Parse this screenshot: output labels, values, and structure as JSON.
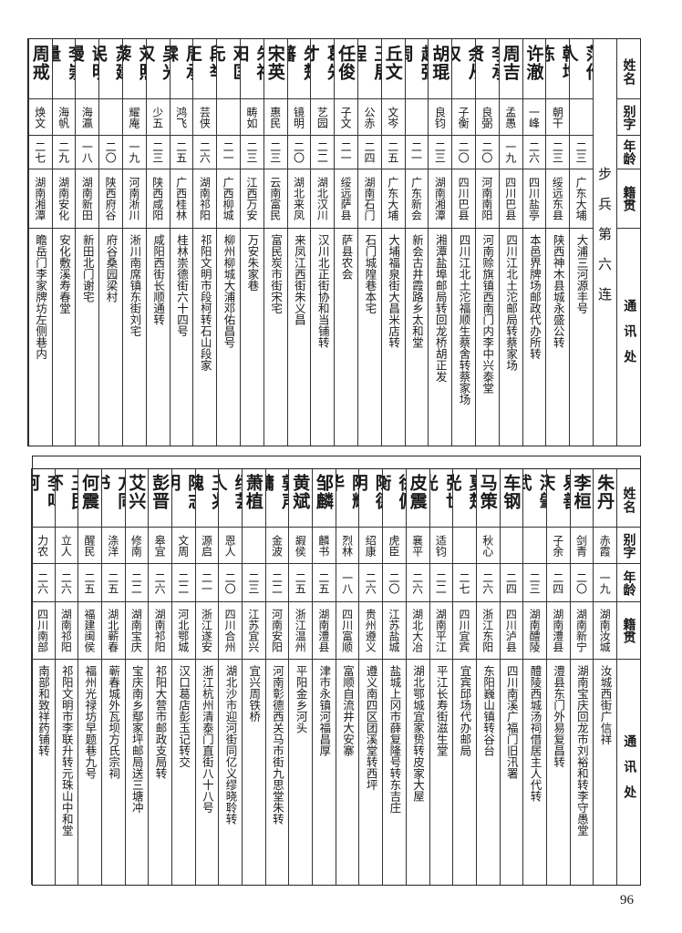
{
  "headers": {
    "name": "姓名",
    "alias": "别字",
    "age": "年龄",
    "origin": "籍贯",
    "address": "通讯处"
  },
  "unit_label": "步兵第六连",
  "top_rows": [
    {
      "name": "范作人",
      "alias": "",
      "age": "二三",
      "origin": "广东大埔",
      "address": "大浦三河源丰号"
    },
    {
      "name": "韩增栋",
      "alias": "朝干",
      "age": "二三",
      "origin": "绥远东县",
      "address": "陕西神木县城永盛公转"
    },
    {
      "name": "许澈",
      "alias": "一峰",
      "age": "二六",
      "origin": "四川盐亭",
      "address": "本邑界牌场邮政代办所转"
    },
    {
      "name": "周吉",
      "alias": "孟愚",
      "age": "一九",
      "origin": "四川巴县",
      "address": "四川江北土沱邮局转蔡家场"
    },
    {
      "name": "李承贤",
      "alias": "良弼",
      "age": "二〇",
      "origin": "河南南阳",
      "address": "河南赊旗镇西南门内李中兴泰堂"
    },
    {
      "name": "余从权",
      "alias": "子衡",
      "age": "二〇",
      "origin": "四川巴县",
      "address": "四川江北土沱福顺生蔡舍转蔡家场"
    },
    {
      "name": "胡琨",
      "alias": "良钧",
      "age": "二三",
      "origin": "湖南湘潭",
      "address": "湘潭盐埠邮局转回龙桥胡正发"
    },
    {
      "name": "赵弼周",
      "alias": "",
      "age": "二一",
      "origin": "广东新会",
      "address": "新会古井霞路乡太和堂"
    },
    {
      "name": "丘文",
      "alias": "文岑",
      "age": "二五",
      "origin": "广东大埔",
      "address": "大埔福泉街大昌米店转"
    },
    {
      "name": "王展程",
      "alias": "公赤",
      "age": "二四",
      "origin": "湖南石门",
      "address": "石门城隍巷本宅"
    },
    {
      "name": "任俊",
      "alias": "子文",
      "age": "二一",
      "origin": "绥远萨县",
      "address": "萨县农会"
    },
    {
      "name": "葛先才",
      "alias": "艺园",
      "age": "二二",
      "origin": "湖北汉川",
      "address": "汉川北正街协和当铺转"
    },
    {
      "name": "朱楚藩",
      "alias": "镜明",
      "age": "二〇",
      "origin": "湖北来凤",
      "address": "来凤江西街朱义昌"
    },
    {
      "name": "宋英",
      "alias": "惠民",
      "age": "二三",
      "origin": "云南富民",
      "address": "富民炭市街宋宅"
    },
    {
      "name": "朱福田",
      "alias": "畴如",
      "age": "二三",
      "origin": "江西万安",
      "address": "万安朱家巷"
    },
    {
      "name": "邓匡元",
      "alias": "",
      "age": "二一",
      "origin": "广西柳城",
      "address": "柳州柳城大浦邓佑昌号"
    },
    {
      "name": "段举正",
      "alias": "芸侠",
      "age": "二六",
      "origin": "湖南祁阳",
      "address": "祁阳文明市段柯转石山段家"
    },
    {
      "name": "周承霖",
      "alias": "鸿飞",
      "age": "二五",
      "origin": "广西桂林",
      "address": "桂林崇德街六十四号"
    },
    {
      "name": "吴光汉",
      "alias": "少五",
      "age": "二三",
      "origin": "陕西咸阳",
      "address": "咸阳西街长顺通转"
    },
    {
      "name": "刘照藜",
      "alias": "耀庵",
      "age": "一九",
      "origin": "河南淅川",
      "address": "淅川南席镇东街刘宅"
    },
    {
      "name": "苏建民",
      "alias": "",
      "age": "二〇",
      "origin": "陕西府谷",
      "address": "府谷桑园梁村"
    },
    {
      "name": "谢明漫",
      "alias": "海瀛",
      "age": "一八",
      "origin": "湖南新田",
      "address": "新田北门谢宅"
    },
    {
      "name": "李崇量",
      "alias": "海帆",
      "age": "二九",
      "origin": "湖南安化",
      "address": "安化敷溪寿春堂"
    },
    {
      "name": "周戒",
      "alias": "焕文",
      "age": "二七",
      "origin": "湖南湘潭",
      "address": "瞻岳门李家牌坊左侧巷内"
    }
  ],
  "bottom_rows": [
    {
      "name": "朱丹",
      "alias": "赤霞",
      "age": "一九",
      "origin": "湖南汝城",
      "address": "汝城西街广信祥"
    },
    {
      "name": "李桓",
      "alias": "剑青",
      "age": "二〇",
      "origin": "湖南新宁",
      "address": "湖南宝庆回龙市刘裕和转李守愚堂"
    },
    {
      "name": "易善庆",
      "alias": "子余",
      "age": "二四",
      "origin": "湖南澧县",
      "address": "澧县东门外易复昌转"
    },
    {
      "name": "汤肇武",
      "alias": "",
      "age": "二三",
      "origin": "湖南醴陵",
      "address": "醴陵西城汤祠借居主人代转"
    },
    {
      "name": "车钢",
      "alias": "",
      "age": "二四",
      "origin": "四川泸县",
      "address": "四川南溪广福门旧汛署"
    },
    {
      "name": "马策",
      "alias": "秋心",
      "age": "二六",
      "origin": "浙江东阳",
      "address": "东阳巍山镇转谷台"
    },
    {
      "name": "夏楚光",
      "alias": "",
      "age": "二七",
      "origin": "四川宜宾",
      "address": "宜宾邱场代办邮局"
    },
    {
      "name": "张世光",
      "alias": "适钧",
      "age": "二二",
      "origin": "湖南平江",
      "address": "平江长寿街滋生堂"
    },
    {
      "name": "皮震",
      "alias": "襄平",
      "age": "二六",
      "origin": "湖北大冶",
      "address": "湖北鄂城宜家贽转皮家大屋"
    },
    {
      "name": "徐佩衡",
      "alias": "虎臣",
      "age": "二〇",
      "origin": "江苏盐城",
      "address": "盐城上冈市薛复隆号转东吉庄"
    },
    {
      "name": "陈德明",
      "alias": "绍康",
      "age": "二六",
      "origin": "贵州遵义",
      "address": "遵义南四区团溪堂转西坪"
    },
    {
      "name": "陈辉华",
      "alias": "烈林",
      "age": "一八",
      "origin": "四川富顺",
      "address": "富顺自流井大安寨"
    },
    {
      "name": "邹麟",
      "alias": "麟书",
      "age": "二五",
      "origin": "湖南澧县",
      "address": "津市永镇河福昌厚"
    },
    {
      "name": "黄斌",
      "alias": "嘏侯",
      "age": "二五",
      "origin": "浙江温州",
      "address": "平阳金乡河头"
    },
    {
      "name": "郭声镛",
      "alias": "金波",
      "age": "二二",
      "origin": "河南安阳",
      "address": "河南彰德西关马市街九思堂朱转"
    },
    {
      "name": "萧植",
      "alias": "",
      "age": "二三",
      "origin": "江苏宜兴",
      "address": "宜兴周铁桥"
    },
    {
      "name": "缪芸人",
      "alias": "恩人",
      "age": "二〇",
      "origin": "四川合州",
      "address": "湖北沙市迎河街同亿义缪晓聆转"
    },
    {
      "name": "王兆槐",
      "alias": "源启",
      "age": "二一",
      "origin": "浙江遂安",
      "address": "浙江杭州清泰门直街八十八号"
    },
    {
      "name": "陈志明",
      "alias": "文周",
      "age": "二二",
      "origin": "河北鄂城",
      "address": "汉口葛店彭玉记转交"
    },
    {
      "name": "彭晋",
      "alias": "皋宜",
      "age": "二六",
      "origin": "湖南祁阳",
      "address": "祁阳大营市邮政支局转"
    },
    {
      "name": "艾兴",
      "alias": "修南",
      "age": "二二",
      "origin": "湖南宝庆",
      "address": "宝庆南乡鄢家坪邮局送三塘冲"
    },
    {
      "name": "方同书",
      "alias": "涤洋",
      "age": "二五",
      "origin": "湖北蕲春",
      "address": "蕲春城外瓦坝方氏宗祠"
    },
    {
      "name": "何震",
      "alias": "醒民",
      "age": "二五",
      "origin": "福建闽侯",
      "address": "福州光禄坊早题巷九号"
    },
    {
      "name": "王民怀",
      "alias": "立人",
      "age": "二六",
      "origin": "湖南祁阳",
      "address": "祁阳文明市李联升转元珠山中和堂"
    },
    {
      "name": "李鸣珂",
      "alias": "力农",
      "age": "二六",
      "origin": "四川南部",
      "address": "南部和致祥药铺转"
    }
  ],
  "page_number": "96"
}
